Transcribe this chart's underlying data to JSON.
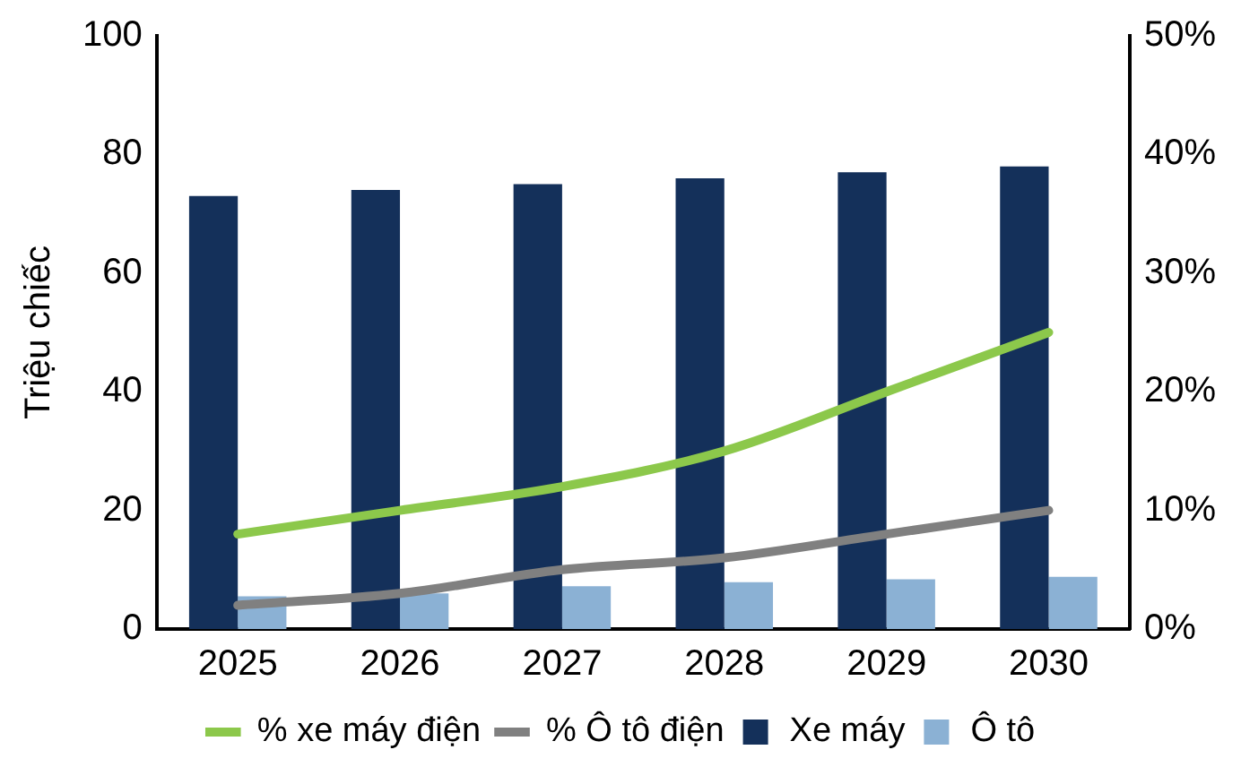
{
  "chart_data": {
    "type": "bar",
    "ylabel": "Triệu chiếc",
    "categories": [
      "2025",
      "2026",
      "2027",
      "2028",
      "2029",
      "2030"
    ],
    "series": [
      {
        "name": "Xe máy",
        "color": "#14305a",
        "values": [
          73,
          74,
          75,
          76,
          77,
          78
        ]
      },
      {
        "name": "Ô tô",
        "color": "#8bb1d4",
        "values": [
          5.5,
          6,
          7.2,
          7.9,
          8.4,
          8.8
        ]
      },
      {
        "name": "% xe máy điện",
        "type": "line",
        "axis": "y2",
        "color": "#8cc84b",
        "values": [
          8,
          10,
          12,
          15,
          20,
          25
        ]
      },
      {
        "name": "% Ô tô điện",
        "type": "line",
        "axis": "y2",
        "color": "#808080",
        "values": [
          2,
          3,
          5,
          6,
          8,
          10
        ]
      }
    ],
    "ylim": [
      0,
      100
    ],
    "yticks": [
      0,
      20,
      40,
      60,
      80,
      100
    ],
    "y2lim": [
      0,
      50
    ],
    "y2ticks": [
      {
        "value": 0,
        "label": "0%"
      },
      {
        "value": 10,
        "label": "10%"
      },
      {
        "value": 20,
        "label": "20%"
      },
      {
        "value": 30,
        "label": "30%"
      },
      {
        "value": 40,
        "label": "40%"
      },
      {
        "value": 50,
        "label": "50%"
      }
    ],
    "grid": false,
    "legend": "bottom",
    "marker": "none"
  }
}
